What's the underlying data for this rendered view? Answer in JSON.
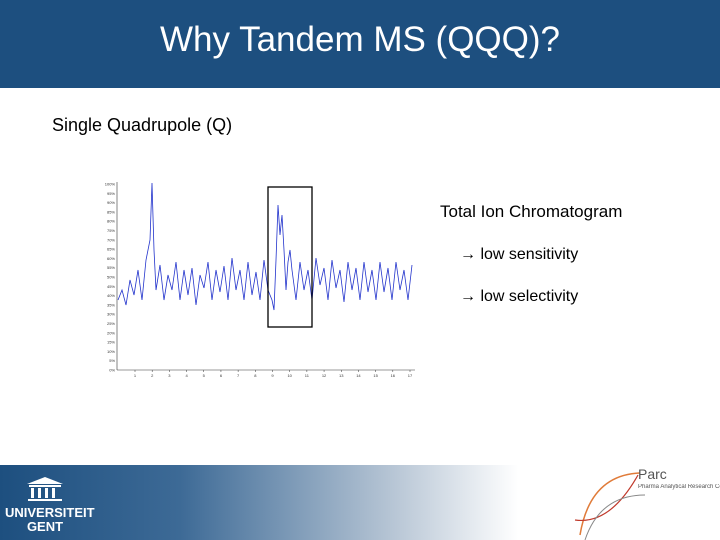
{
  "header": {
    "title": "Why Tandem MS (QQQ)?"
  },
  "subtitle": "Single Quadrupole (Q)",
  "chromatogram": {
    "ylabels": [
      "100%",
      "95%",
      "90%",
      "85%",
      "80%",
      "75%",
      "70%",
      "65%",
      "60%",
      "55%",
      "50%",
      "45%",
      "40%",
      "35%",
      "30%",
      "25%",
      "20%",
      "15%",
      "10%",
      "5%",
      "0%"
    ],
    "xticks": [
      1,
      2,
      3,
      4,
      5,
      6,
      7,
      8,
      9,
      10,
      11,
      12,
      13,
      14,
      15,
      16,
      17
    ]
  },
  "notes": {
    "heading": "Total Ion Chromatogram",
    "items": [
      "→ low sensitivity",
      "→ low selectivity"
    ]
  },
  "footer": {
    "logo_left": [
      "UNIVERSITEIT",
      "GENT"
    ],
    "logo_right_name": "Parc",
    "logo_right_sub": "Pharma Analytical Research Centre"
  }
}
